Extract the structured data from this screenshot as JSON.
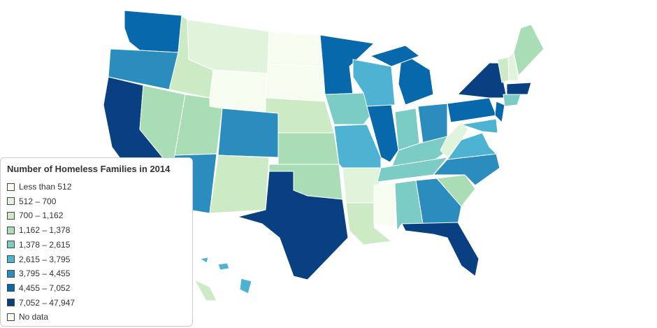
{
  "legend": {
    "title": "Number of Homeless Families in 2014",
    "items": [
      {
        "label": "Less than 512",
        "color": "#f7fcf0"
      },
      {
        "label": "512 – 700",
        "color": "#e0f3db"
      },
      {
        "label": "700 – 1,162",
        "color": "#ccebc5"
      },
      {
        "label": "1,162 – 1,378",
        "color": "#a8ddb5"
      },
      {
        "label": "1,378 – 2,615",
        "color": "#7bccc4"
      },
      {
        "label": "2,615 – 3,795",
        "color": "#4eb3d3"
      },
      {
        "label": "3,795 – 4,455",
        "color": "#2b8cbe"
      },
      {
        "label": "4,455 – 7,052",
        "color": "#0868ac"
      },
      {
        "label": "7,052 – 47,947",
        "color": "#084081"
      },
      {
        "label": "No data",
        "color": "#fdfdf0"
      }
    ]
  }
}
